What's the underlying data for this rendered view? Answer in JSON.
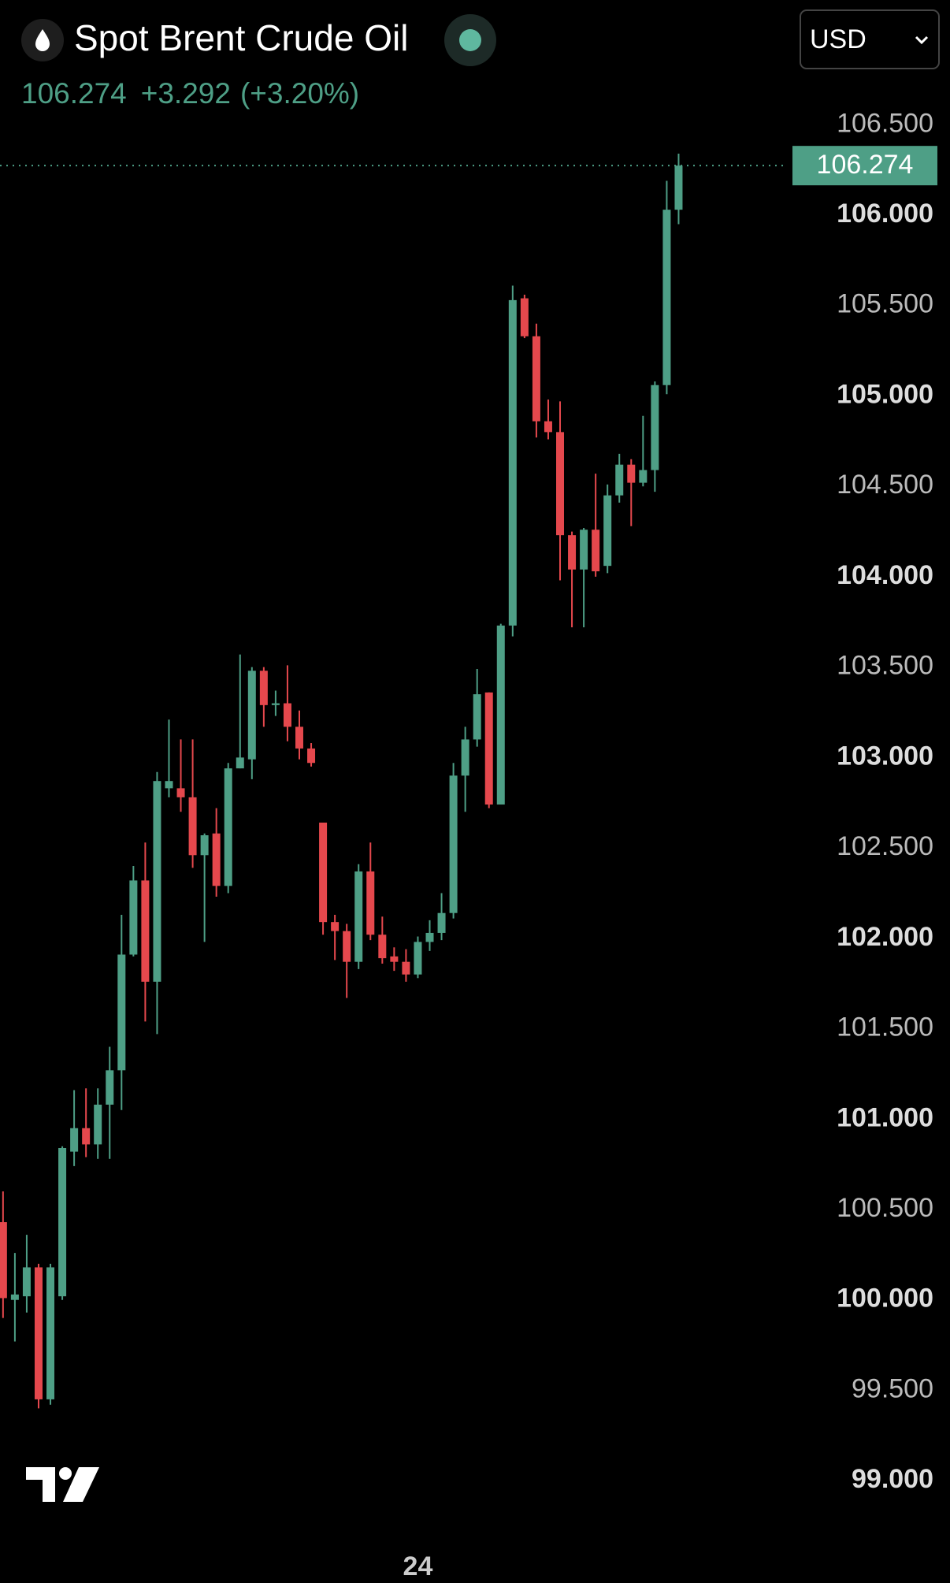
{
  "chart_data": {
    "type": "candlestick",
    "title": "Spot Brent Crude Oil",
    "currency": "USD",
    "last_price": 106.274,
    "change": "+3.292",
    "change_percent": "(+3.20%)",
    "up_color": "#4e9f86",
    "down_color": "#e5484d",
    "categories": [
      null,
      null,
      null,
      null,
      null,
      null,
      null,
      null,
      null,
      null,
      null,
      null,
      null,
      null,
      null,
      null,
      null,
      null,
      null,
      null,
      null,
      null,
      null,
      null,
      null,
      null,
      null,
      null,
      null,
      null,
      null,
      null,
      null,
      null,
      null,
      "24",
      null,
      null,
      null,
      null,
      null,
      null,
      null,
      null,
      null,
      null,
      null,
      null,
      null,
      null,
      null,
      null,
      null,
      null,
      null,
      null,
      null,
      null
    ],
    "open": [
      100.43,
      100.0,
      100.02,
      100.18,
      99.45,
      100.02,
      100.82,
      100.95,
      100.86,
      101.08,
      101.27,
      101.91,
      102.32,
      101.76,
      102.83,
      102.83,
      102.78,
      102.46,
      102.58,
      102.29,
      102.94,
      102.99,
      103.48,
      103.29,
      103.3,
      103.17,
      103.05,
      102.64,
      102.09,
      102.04,
      101.87,
      102.37,
      102.02,
      101.9,
      101.87,
      101.8,
      101.98,
      102.03,
      102.14,
      102.9,
      103.1,
      103.36,
      102.74,
      103.73,
      105.54,
      105.33,
      104.86,
      104.8,
      104.23,
      104.04,
      104.26,
      104.06,
      104.45,
      104.62,
      104.52,
      104.59,
      105.06,
      106.03
    ],
    "high": [
      100.6,
      100.26,
      100.36,
      100.2,
      100.2,
      100.85,
      101.16,
      101.17,
      101.17,
      101.4,
      102.13,
      102.4,
      102.53,
      102.92,
      103.21,
      103.1,
      103.1,
      102.58,
      102.72,
      102.97,
      103.57,
      103.5,
      103.5,
      103.37,
      103.51,
      103.26,
      103.08,
      102.64,
      102.13,
      102.08,
      102.41,
      102.53,
      102.12,
      101.95,
      101.94,
      102.01,
      102.1,
      102.25,
      102.97,
      103.17,
      103.49,
      103.36,
      103.74,
      105.61,
      105.56,
      105.4,
      104.98,
      104.97,
      104.25,
      104.27,
      104.57,
      104.51,
      104.68,
      104.65,
      104.89,
      105.08,
      106.19,
      106.34
    ],
    "low": [
      99.9,
      99.77,
      99.93,
      99.4,
      99.42,
      100.0,
      100.74,
      100.79,
      100.78,
      100.78,
      101.05,
      101.9,
      101.54,
      101.47,
      102.78,
      102.7,
      102.39,
      101.98,
      102.23,
      102.25,
      102.94,
      102.88,
      103.17,
      103.23,
      103.09,
      102.99,
      102.95,
      102.02,
      101.88,
      101.67,
      101.83,
      101.99,
      101.86,
      101.82,
      101.76,
      101.78,
      101.93,
      101.99,
      102.11,
      102.7,
      103.06,
      102.72,
      102.74,
      103.67,
      105.32,
      104.77,
      104.76,
      103.98,
      103.72,
      103.72,
      104.0,
      104.02,
      104.41,
      104.28,
      104.5,
      104.47,
      105.01,
      105.95
    ],
    "close": [
      100.01,
      100.03,
      100.18,
      99.45,
      100.18,
      100.84,
      100.95,
      100.86,
      101.08,
      101.27,
      101.91,
      102.32,
      101.76,
      102.87,
      102.87,
      102.78,
      102.46,
      102.57,
      102.29,
      102.94,
      103.0,
      103.48,
      103.29,
      103.3,
      103.17,
      103.05,
      102.97,
      102.09,
      102.04,
      101.87,
      102.37,
      102.02,
      101.89,
      101.87,
      101.8,
      101.98,
      102.03,
      102.14,
      102.9,
      103.1,
      103.35,
      102.74,
      103.73,
      105.53,
      105.33,
      104.86,
      104.8,
      104.23,
      104.04,
      104.26,
      104.03,
      104.45,
      104.62,
      104.52,
      104.59,
      105.06,
      106.03,
      106.274
    ],
    "ylim": [
      98.7,
      107.19
    ],
    "yticks": [
      {
        "value": 99,
        "label": "99.000"
      },
      {
        "value": 99.5,
        "label": "99.500"
      },
      {
        "value": 100,
        "label": "100.000"
      },
      {
        "value": 100.5,
        "label": "100.500"
      },
      {
        "value": 101,
        "label": "101.000"
      },
      {
        "value": 101.5,
        "label": "101.500"
      },
      {
        "value": 102,
        "label": "102.000"
      },
      {
        "value": 102.5,
        "label": "102.500"
      },
      {
        "value": 103,
        "label": "103.000"
      },
      {
        "value": 103.5,
        "label": "103.500"
      },
      {
        "value": 104,
        "label": "104.000"
      },
      {
        "value": 104.5,
        "label": "104.500"
      },
      {
        "value": 105,
        "label": "105.000"
      },
      {
        "value": 105.5,
        "label": "105.500"
      },
      {
        "value": 106,
        "label": "106.000"
      },
      {
        "value": 106.5,
        "label": "106.500"
      }
    ]
  }
}
